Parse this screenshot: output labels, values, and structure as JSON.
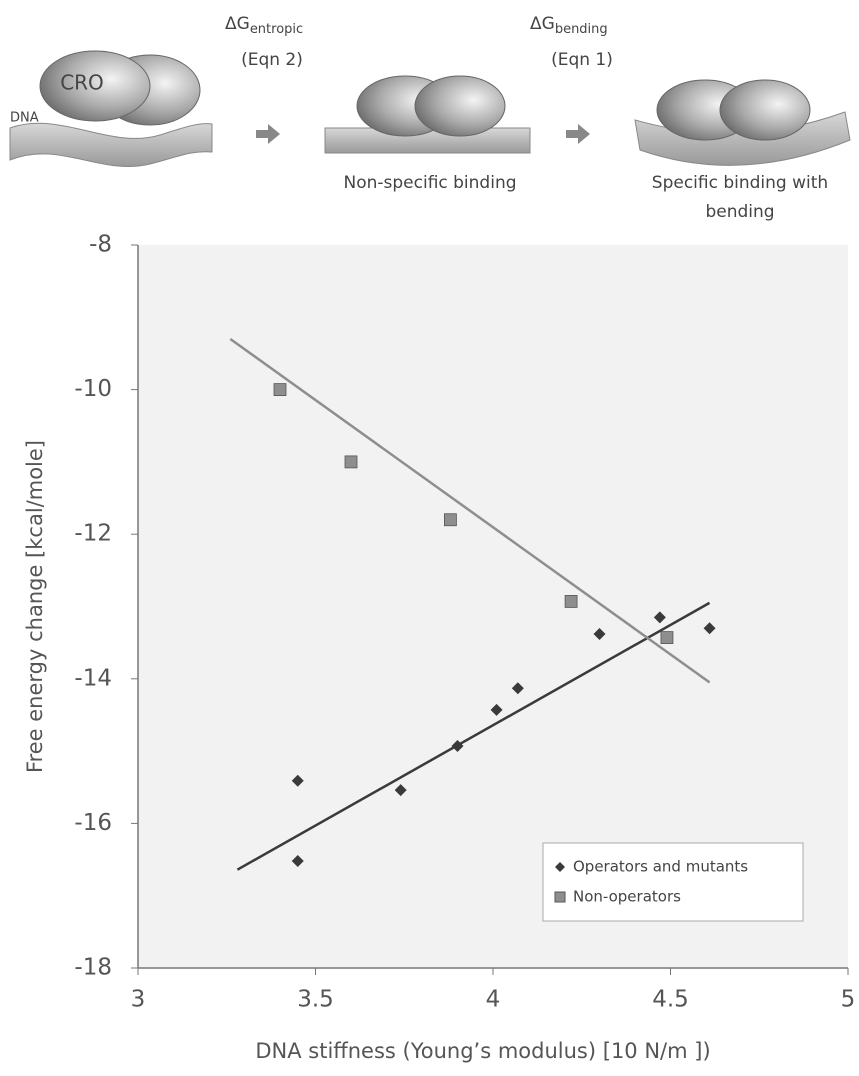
{
  "diagram": {
    "step1": {
      "symbol": "ΔG",
      "subscript": "entropic",
      "equation": "(Eqn 2)"
    },
    "step2": {
      "symbol": "ΔG",
      "subscript": "bending",
      "equation": "(Eqn 1)"
    },
    "protein_label": "CRO",
    "dna_label": "DNA",
    "state2_label": "Non-specific binding",
    "state3_label": [
      "Specific binding with",
      "bending"
    ]
  },
  "chart_data": {
    "type": "scatter",
    "x_label": "DNA stiffness (Young’s modulus) [10  N/m ])",
    "y_label": "Free energy change [kcal/mole]",
    "xlim": [
      3,
      5
    ],
    "xticks": [
      3,
      3.5,
      4,
      4.5,
      5
    ],
    "ylim": [
      -18,
      -8
    ],
    "yticks": [
      -18,
      -16,
      -14,
      -12,
      -10,
      -8
    ],
    "legend": "lower right",
    "plot_background": "#f2f2f2",
    "series": [
      {
        "name": "Operators and mutants",
        "marker": "diamond",
        "color": "#3a3a3a",
        "x": [
          3.45,
          3.45,
          3.74,
          3.9,
          4.01,
          4.07,
          4.3,
          4.47,
          4.61
        ],
        "values": [
          -15.41,
          -16.52,
          -15.54,
          -14.93,
          -14.43,
          -14.13,
          -13.38,
          -13.15,
          -13.3
        ],
        "trend_x": [
          3.28,
          4.61
        ],
        "trend_y": [
          -16.64,
          -12.95
        ]
      },
      {
        "name": "Non-operators",
        "marker": "square",
        "color": "#8e8e8e",
        "x": [
          3.4,
          3.6,
          3.88,
          4.22,
          4.49
        ],
        "values": [
          -10.0,
          -11.0,
          -11.8,
          -12.93,
          -13.43
        ],
        "trend_x": [
          3.26,
          4.61
        ],
        "trend_y": [
          -9.3,
          -14.05
        ]
      }
    ]
  }
}
